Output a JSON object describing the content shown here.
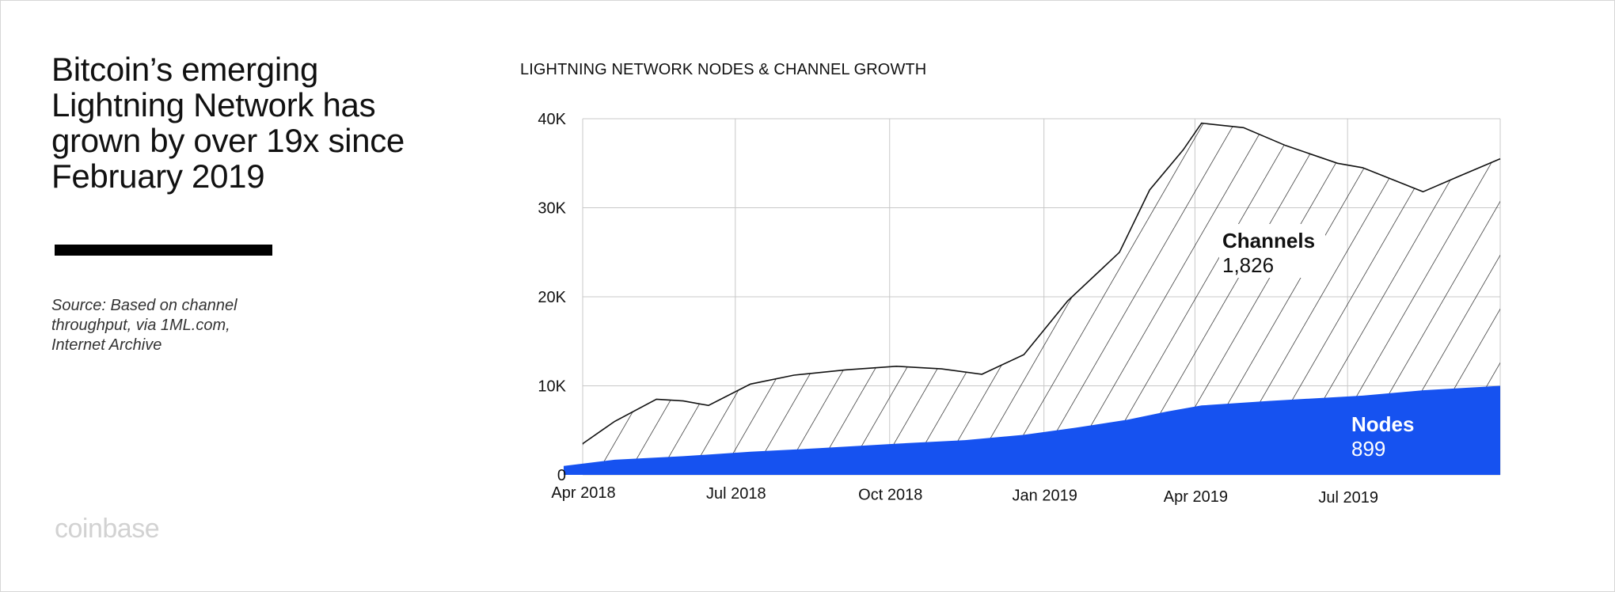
{
  "headline": "Bitcoin’s emerging Lightning Network has grown by over 19x since February 2019",
  "source_note": "Source: Based on channel throughput, via 1ML.com, Internet Archive",
  "brand": "coinbase",
  "colors": {
    "nodes": "#1652f0",
    "channels_hatch": "#111111",
    "grid": "#c8c8c8"
  },
  "chart_data": {
    "type": "area",
    "title": "LIGHTNING NETWORK NODES & CHANNEL GROWTH",
    "xlabel": "",
    "ylabel": "",
    "x_ticks": [
      "Apr 2018",
      "Jul 2018",
      "Oct 2018",
      "Jan 2019",
      "Apr 2019",
      "Jul 2019"
    ],
    "y_ticks": [
      "0",
      "10K",
      "20K",
      "30K",
      "40K"
    ],
    "ylim": [
      0,
      40000
    ],
    "xlim": [
      "2018-04-01",
      "2019-09-30"
    ],
    "stacked": false,
    "grid": true,
    "series": [
      {
        "name": "Channels",
        "callout": "1,826",
        "fill": "hatched",
        "points": [
          [
            "2018-04-01",
            3500
          ],
          [
            "2018-04-20",
            6000
          ],
          [
            "2018-05-15",
            8500
          ],
          [
            "2018-05-31",
            8300
          ],
          [
            "2018-06-15",
            7800
          ],
          [
            "2018-07-10",
            10200
          ],
          [
            "2018-08-05",
            11200
          ],
          [
            "2018-09-05",
            11800
          ],
          [
            "2018-10-05",
            12200
          ],
          [
            "2018-11-01",
            11900
          ],
          [
            "2018-11-25",
            11300
          ],
          [
            "2018-12-20",
            13500
          ],
          [
            "2019-01-15",
            19500
          ],
          [
            "2019-02-15",
            25000
          ],
          [
            "2019-03-05",
            32000
          ],
          [
            "2019-03-25",
            36500
          ],
          [
            "2019-04-05",
            39500
          ],
          [
            "2019-04-30",
            39000
          ],
          [
            "2019-05-25",
            37000
          ],
          [
            "2019-06-25",
            35000
          ],
          [
            "2019-07-10",
            34500
          ],
          [
            "2019-08-15",
            31800
          ],
          [
            "2019-09-05",
            33500
          ],
          [
            "2019-09-30",
            35500
          ]
        ]
      },
      {
        "name": "Nodes",
        "callout": "899",
        "fill": "solid",
        "points": [
          [
            "2018-03-15",
            1000
          ],
          [
            "2018-04-20",
            1700
          ],
          [
            "2018-05-31",
            2100
          ],
          [
            "2018-07-10",
            2600
          ],
          [
            "2018-08-20",
            3000
          ],
          [
            "2018-10-05",
            3500
          ],
          [
            "2018-11-15",
            3900
          ],
          [
            "2018-12-20",
            4500
          ],
          [
            "2019-01-20",
            5300
          ],
          [
            "2019-02-20",
            6200
          ],
          [
            "2019-03-15",
            7100
          ],
          [
            "2019-04-05",
            7800
          ],
          [
            "2019-05-15",
            8300
          ],
          [
            "2019-07-10",
            8900
          ],
          [
            "2019-08-15",
            9500
          ],
          [
            "2019-09-30",
            10000
          ]
        ]
      }
    ]
  }
}
